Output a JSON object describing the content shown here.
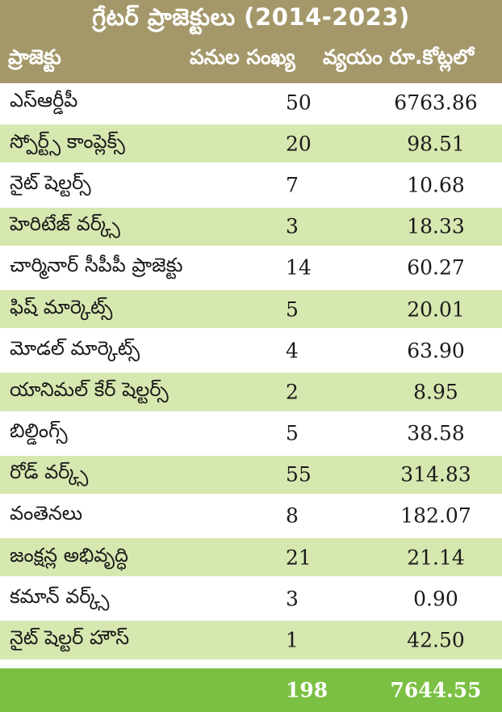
{
  "title": "గ్రేటర్ ప్రాజెక్టులు (2014-2023)",
  "columns": [
    "ప్రాజెక్టు",
    "పనుల సంఖ్య",
    "వ్యయం రూ.కోట్లలో"
  ],
  "rows": [
    {
      "name": "ఎస్ఆర్డీపీ",
      "count": "50",
      "cost": "6763.86"
    },
    {
      "name": "స్పోర్ట్స్ కాంప్లెక్స్",
      "count": "20",
      "cost": "98.51"
    },
    {
      "name": "నైట్ షెల్టర్స్",
      "count": "7",
      "cost": "10.68"
    },
    {
      "name": "హెరిటేజ్ వర్క్స్",
      "count": "3",
      "cost": "18.33"
    },
    {
      "name": "చార్మినార్ సీపీపీ ప్రాజెక్టు",
      "count": "14",
      "cost": "60.27"
    },
    {
      "name": "ఫిష్ మార్కెట్స్",
      "count": "5",
      "cost": "20.01"
    },
    {
      "name": "మోడల్ మార్కెట్స్",
      "count": "4",
      "cost": "63.90"
    },
    {
      "name": "యానిమల్ కేర్ షెల్టర్స్",
      "count": "2",
      "cost": "8.95"
    },
    {
      "name": "బిల్డింగ్స్",
      "count": "5",
      "cost": "38.58"
    },
    {
      "name": "రోడ్ వర్క్స్",
      "count": "55",
      "cost": "314.83"
    },
    {
      "name": "వంతెనలు",
      "count": "8",
      "cost": "182.07"
    },
    {
      "name": "జంక్షన్ల అభివృద్ధి",
      "count": "21",
      "cost": "21.14"
    },
    {
      "name": "కమాన్ వర్క్స్",
      "count": "3",
      "cost": "0.90"
    },
    {
      "name": "నైట్ షెల్టర్ హౌస్",
      "count": "1",
      "cost": "42.50"
    }
  ],
  "total": {
    "count": "198",
    "cost": "7644.55"
  },
  "colors": {
    "header": "#a4986a",
    "alt_row": "#d6e8b0",
    "total": "#7bc043"
  }
}
